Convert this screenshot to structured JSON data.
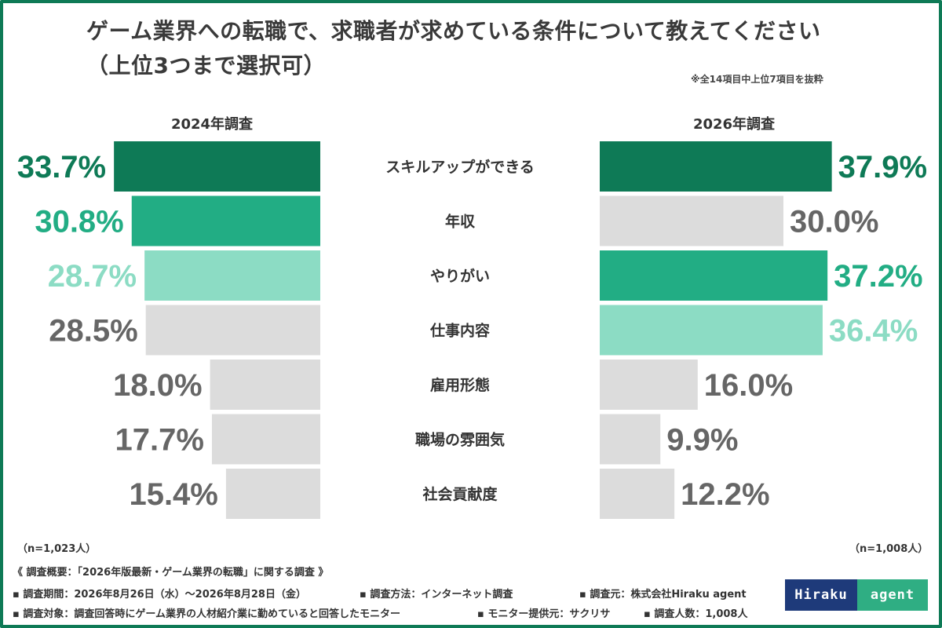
{
  "title": "ゲーム業界への転職で、求職者が求めている条件について教えてください",
  "subtitle": "（上位3つまで選択可）",
  "note": "※全14項目中上位7項目を抜粋",
  "colors": {
    "rank1": "#0e7a56",
    "rank2": "#22ad84",
    "rank3": "#8cdcc4",
    "other": "#dcdcdc",
    "other_text": "#666666",
    "frame": "#0e7a56"
  },
  "chart_data": {
    "type": "bar",
    "categories": [
      "スキルアップができる",
      "年収",
      "やりがい",
      "仕事内容",
      "雇用形態",
      "職場の雰囲気",
      "社会貢献度"
    ],
    "series": [
      {
        "name": "2024年調査",
        "values": [
          33.7,
          30.8,
          28.7,
          28.5,
          18.0,
          17.7,
          15.4
        ],
        "labels": [
          "33.7%",
          "30.8%",
          "28.7%",
          "28.5%",
          "18.0%",
          "17.7%",
          "15.4%"
        ],
        "ranks": [
          1,
          2,
          3,
          0,
          0,
          0,
          0
        ],
        "n": "（n=1,023人）"
      },
      {
        "name": "2026年調査",
        "values": [
          37.9,
          30.0,
          37.2,
          36.4,
          16.0,
          9.9,
          12.2
        ],
        "labels": [
          "37.9%",
          "30.0%",
          "37.2%",
          "36.4%",
          "16.0%",
          "9.9%",
          "12.2%"
        ],
        "ranks": [
          1,
          0,
          2,
          3,
          0,
          0,
          0
        ],
        "n": "（n=1,008人）"
      }
    ]
  },
  "footer": {
    "line1": "《 調査概要：「2026年版最新・ゲーム業界の転職」に関する調査 》",
    "line2a": "▪ 調査期間：2026年8月26日（水）～2026年8月28日（金）",
    "line2b": "▪ 調査方法：インターネット調査",
    "line2c": "▪ 調査元：株式会社Hiraku agent",
    "line3a": "▪ 調査対象：調査回答時にゲーム業界の人材紹介業に勤めていると回答したモニター",
    "line3b": "▪ モニター提供元：サクリサ",
    "line3c": "▪ 調査人数：1,008人"
  },
  "logo": {
    "left": "Hiraku",
    "right": "agent"
  }
}
